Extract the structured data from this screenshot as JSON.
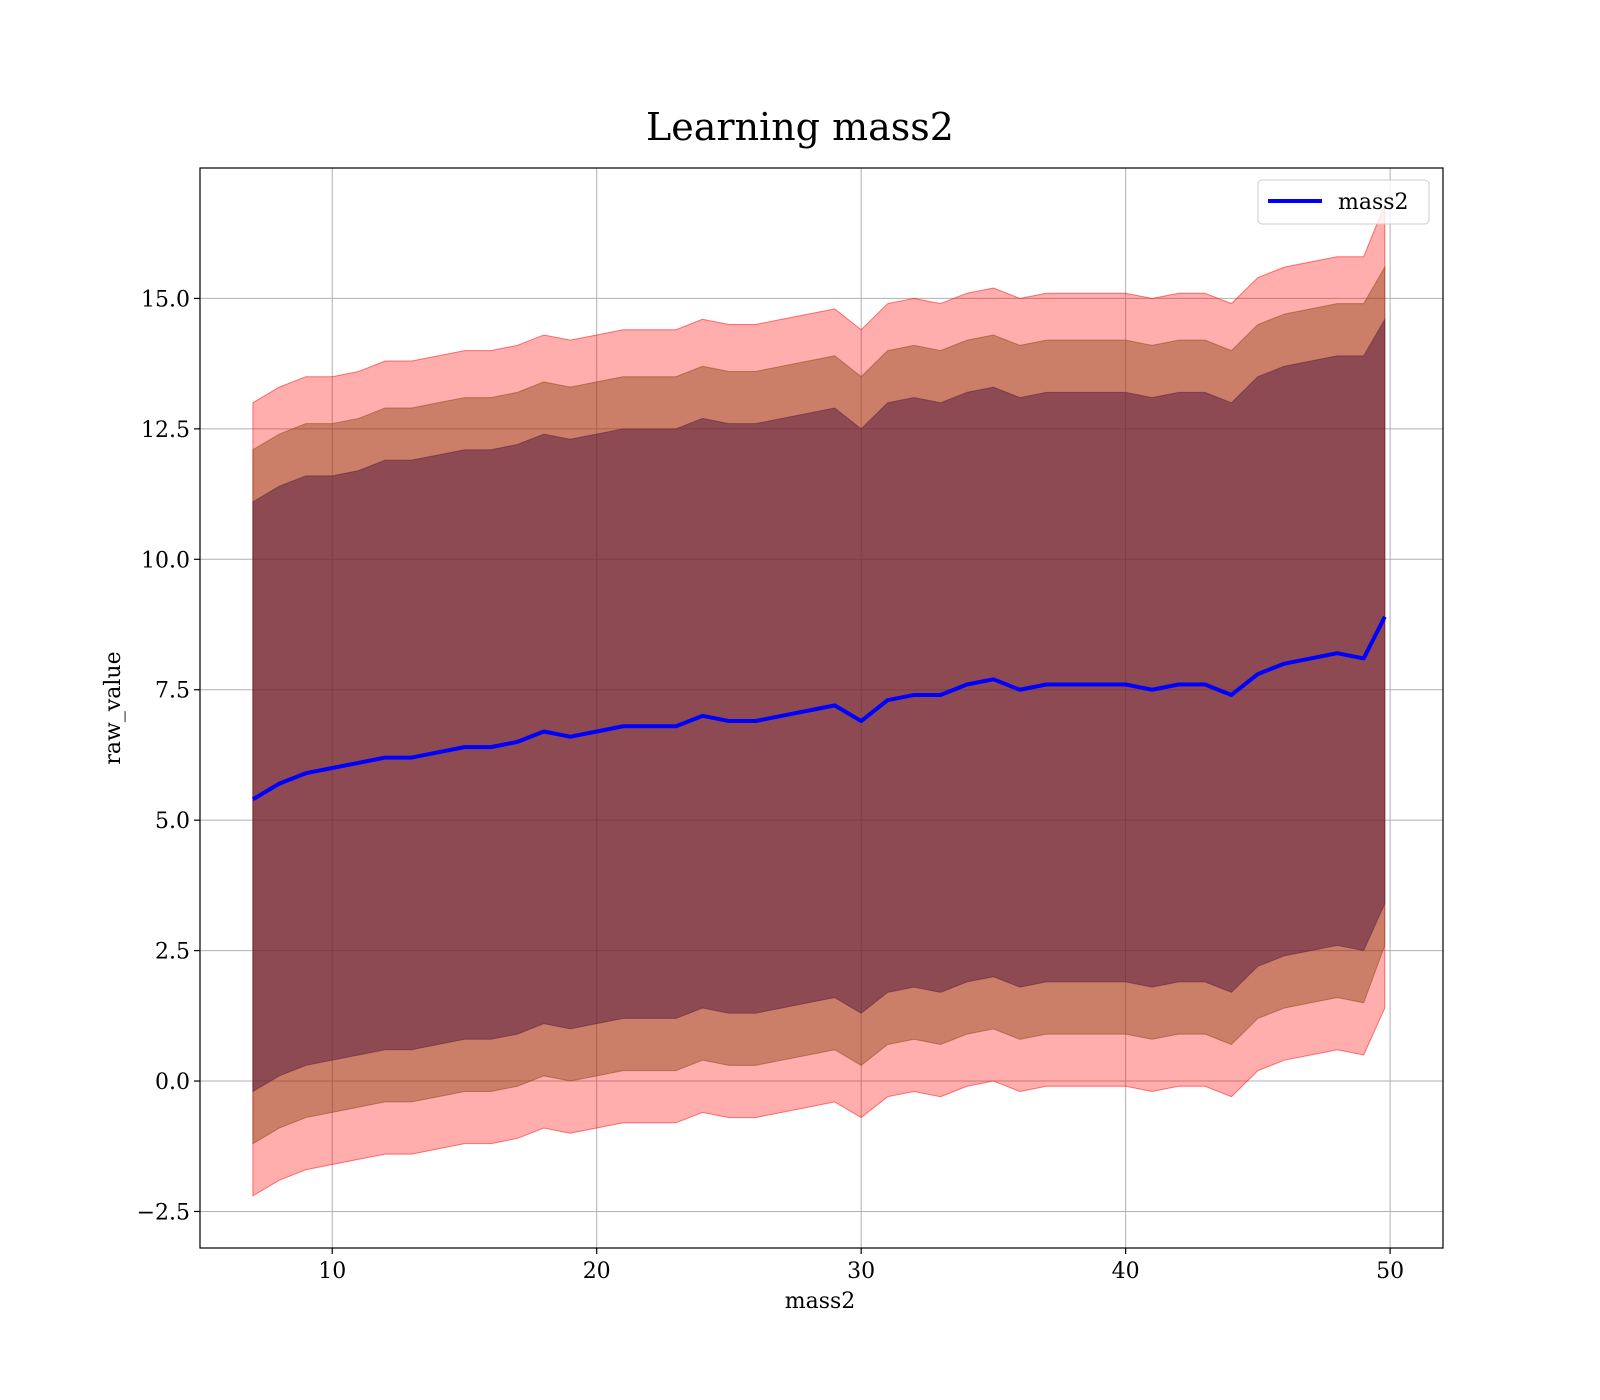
{
  "chart_data": {
    "type": "line",
    "title": "Learning mass2",
    "xlabel": "mass2",
    "ylabel": "raw_value",
    "xlim": [
      5,
      52
    ],
    "ylim": [
      -3.2,
      17.5
    ],
    "x_ticks": [
      10,
      20,
      30,
      40,
      50
    ],
    "x_tick_labels": [
      "10",
      "20",
      "30",
      "40",
      "50"
    ],
    "y_ticks": [
      -2.5,
      0.0,
      2.5,
      5.0,
      7.5,
      10.0,
      12.5,
      15.0
    ],
    "y_tick_labels": [
      "−2.5",
      "0.0",
      "2.5",
      "5.0",
      "7.5",
      "10.0",
      "12.5",
      "15.0"
    ],
    "grid": true,
    "legend": {
      "position": "top-right",
      "entries": [
        "mass2"
      ]
    },
    "colors": {
      "line": "#0000ff",
      "band_outer": "#ff0000",
      "band_middle": "#8b4513",
      "band_inner": "#5b1f40",
      "grid": "#b0b0b0"
    },
    "series": [
      {
        "name": "mass2",
        "x": [
          7,
          8,
          9,
          10,
          11,
          12,
          13,
          14,
          15,
          16,
          17,
          18,
          19,
          20,
          21,
          22,
          23,
          24,
          25,
          26,
          27,
          28,
          29,
          30,
          31,
          32,
          33,
          34,
          35,
          36,
          37,
          38,
          39,
          40,
          41,
          42,
          43,
          44,
          45,
          46,
          47,
          48,
          49,
          49.8
        ],
        "y": [
          5.4,
          5.7,
          5.9,
          6.0,
          6.1,
          6.2,
          6.2,
          6.3,
          6.4,
          6.4,
          6.5,
          6.7,
          6.6,
          6.7,
          6.8,
          6.8,
          6.8,
          7.0,
          6.9,
          6.9,
          7.0,
          7.1,
          7.2,
          6.9,
          7.3,
          7.4,
          7.4,
          7.6,
          7.7,
          7.5,
          7.6,
          7.6,
          7.6,
          7.6,
          7.5,
          7.6,
          7.6,
          7.4,
          7.8,
          8.0,
          8.1,
          8.2,
          8.1,
          8.9
        ]
      }
    ],
    "bands": [
      {
        "level": "outer",
        "upper": [
          13.0,
          13.3,
          13.5,
          13.5,
          13.6,
          13.8,
          13.8,
          13.9,
          14.0,
          14.0,
          14.1,
          14.3,
          14.2,
          14.3,
          14.4,
          14.4,
          14.4,
          14.6,
          14.5,
          14.5,
          14.6,
          14.7,
          14.8,
          14.4,
          14.9,
          15.0,
          14.9,
          15.1,
          15.2,
          15.0,
          15.1,
          15.1,
          15.1,
          15.1,
          15.0,
          15.1,
          15.1,
          14.9,
          15.4,
          15.6,
          15.7,
          15.8,
          15.8,
          16.8
        ],
        "lower": [
          -2.2,
          -1.9,
          -1.7,
          -1.6,
          -1.5,
          -1.4,
          -1.4,
          -1.3,
          -1.2,
          -1.2,
          -1.1,
          -0.9,
          -1.0,
          -0.9,
          -0.8,
          -0.8,
          -0.8,
          -0.6,
          -0.7,
          -0.7,
          -0.6,
          -0.5,
          -0.4,
          -0.7,
          -0.3,
          -0.2,
          -0.3,
          -0.1,
          0.0,
          -0.2,
          -0.1,
          -0.1,
          -0.1,
          -0.1,
          -0.2,
          -0.1,
          -0.1,
          -0.3,
          0.2,
          0.4,
          0.5,
          0.6,
          0.5,
          1.4
        ]
      },
      {
        "level": "middle",
        "upper": [
          12.1,
          12.4,
          12.6,
          12.6,
          12.7,
          12.9,
          12.9,
          13.0,
          13.1,
          13.1,
          13.2,
          13.4,
          13.3,
          13.4,
          13.5,
          13.5,
          13.5,
          13.7,
          13.6,
          13.6,
          13.7,
          13.8,
          13.9,
          13.5,
          14.0,
          14.1,
          14.0,
          14.2,
          14.3,
          14.1,
          14.2,
          14.2,
          14.2,
          14.2,
          14.1,
          14.2,
          14.2,
          14.0,
          14.5,
          14.7,
          14.8,
          14.9,
          14.9,
          15.6
        ],
        "lower": [
          -1.2,
          -0.9,
          -0.7,
          -0.6,
          -0.5,
          -0.4,
          -0.4,
          -0.3,
          -0.2,
          -0.2,
          -0.1,
          0.1,
          0.0,
          0.1,
          0.2,
          0.2,
          0.2,
          0.4,
          0.3,
          0.3,
          0.4,
          0.5,
          0.6,
          0.3,
          0.7,
          0.8,
          0.7,
          0.9,
          1.0,
          0.8,
          0.9,
          0.9,
          0.9,
          0.9,
          0.8,
          0.9,
          0.9,
          0.7,
          1.2,
          1.4,
          1.5,
          1.6,
          1.5,
          2.6
        ]
      },
      {
        "level": "inner",
        "upper": [
          11.1,
          11.4,
          11.6,
          11.6,
          11.7,
          11.9,
          11.9,
          12.0,
          12.1,
          12.1,
          12.2,
          12.4,
          12.3,
          12.4,
          12.5,
          12.5,
          12.5,
          12.7,
          12.6,
          12.6,
          12.7,
          12.8,
          12.9,
          12.5,
          13.0,
          13.1,
          13.0,
          13.2,
          13.3,
          13.1,
          13.2,
          13.2,
          13.2,
          13.2,
          13.1,
          13.2,
          13.2,
          13.0,
          13.5,
          13.7,
          13.8,
          13.9,
          13.9,
          14.6
        ],
        "lower": [
          -0.2,
          0.1,
          0.3,
          0.4,
          0.5,
          0.6,
          0.6,
          0.7,
          0.8,
          0.8,
          0.9,
          1.1,
          1.0,
          1.1,
          1.2,
          1.2,
          1.2,
          1.4,
          1.3,
          1.3,
          1.4,
          1.5,
          1.6,
          1.3,
          1.7,
          1.8,
          1.7,
          1.9,
          2.0,
          1.8,
          1.9,
          1.9,
          1.9,
          1.9,
          1.8,
          1.9,
          1.9,
          1.7,
          2.2,
          2.4,
          2.5,
          2.6,
          2.5,
          3.4
        ]
      }
    ]
  }
}
